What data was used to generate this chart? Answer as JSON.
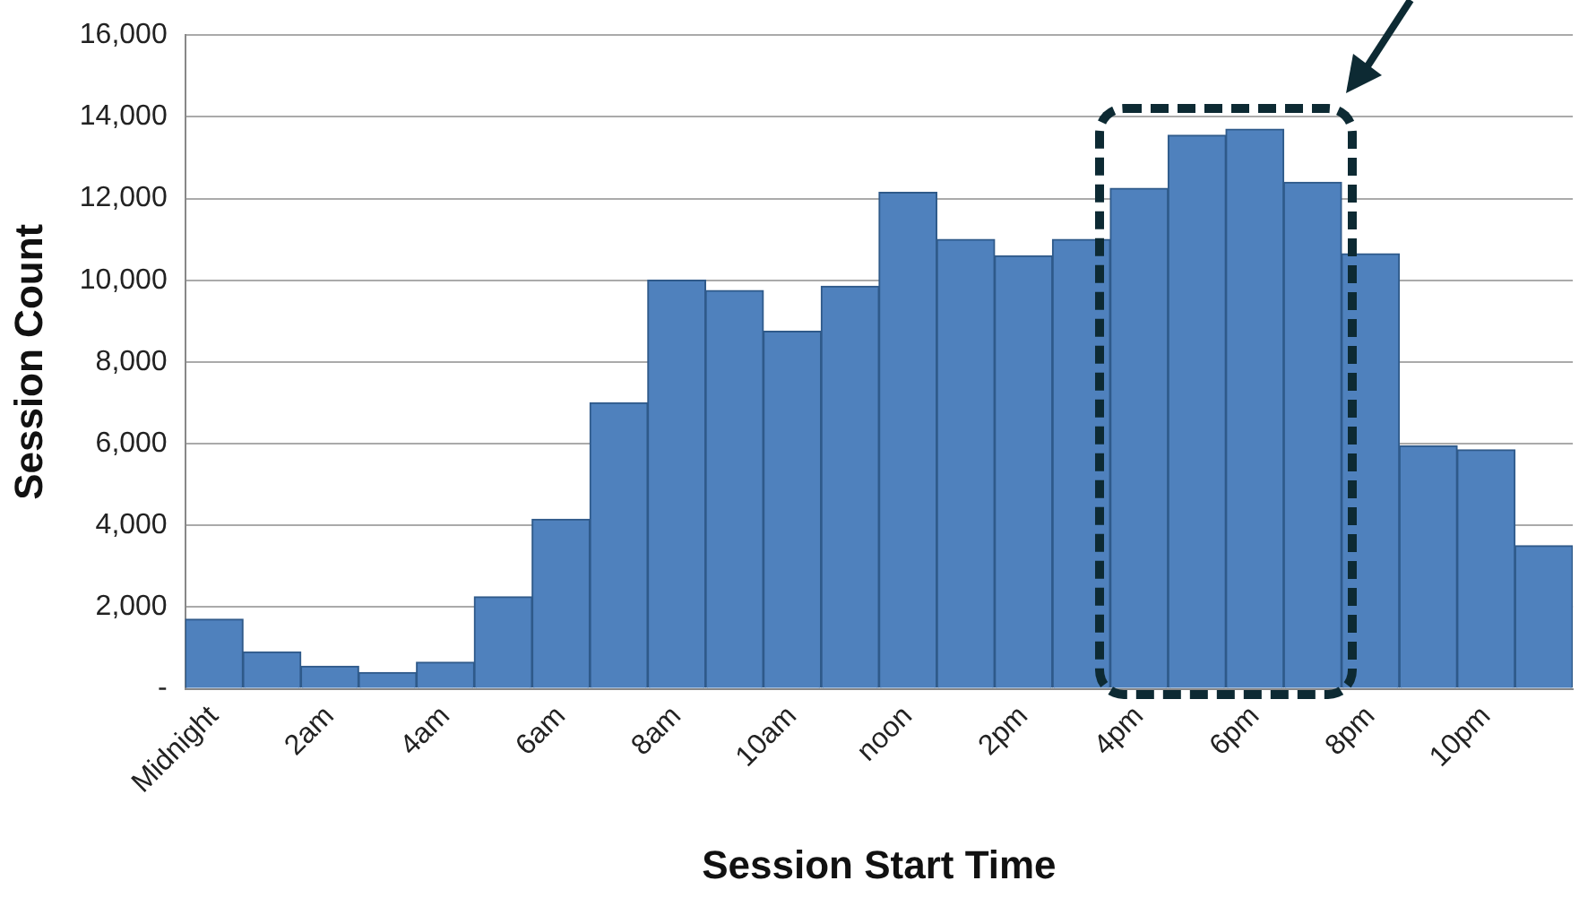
{
  "chart_data": {
    "type": "bar",
    "xlabel": "Session Start Time",
    "ylabel": "Session Count",
    "categories": [
      "Midnight",
      null,
      "2am",
      null,
      "4am",
      null,
      "6am",
      null,
      "8am",
      null,
      "10am",
      null,
      "noon",
      null,
      "2pm",
      null,
      "4pm",
      null,
      "6pm",
      null,
      "8pm",
      null,
      "10pm",
      null
    ],
    "values": [
      1700,
      900,
      550,
      400,
      650,
      2250,
      4150,
      7000,
      10000,
      9750,
      8750,
      9850,
      12150,
      11000,
      10600,
      11000,
      12250,
      13550,
      13700,
      12400,
      10650,
      5950,
      5850,
      3500
    ],
    "color": "#4f81bd",
    "ylim": [
      0,
      16000
    ],
    "yticks": [
      {
        "value": 0,
        "label": "-"
      },
      {
        "value": 2000,
        "label": "2,000"
      },
      {
        "value": 4000,
        "label": "4,000"
      },
      {
        "value": 6000,
        "label": "6,000"
      },
      {
        "value": 8000,
        "label": "8,000"
      },
      {
        "value": 10000,
        "label": "10,000"
      },
      {
        "value": 12000,
        "label": "12,000"
      },
      {
        "value": 14000,
        "label": "14,000"
      },
      {
        "value": 16000,
        "label": "16,000"
      }
    ],
    "grid": "y"
  }
}
